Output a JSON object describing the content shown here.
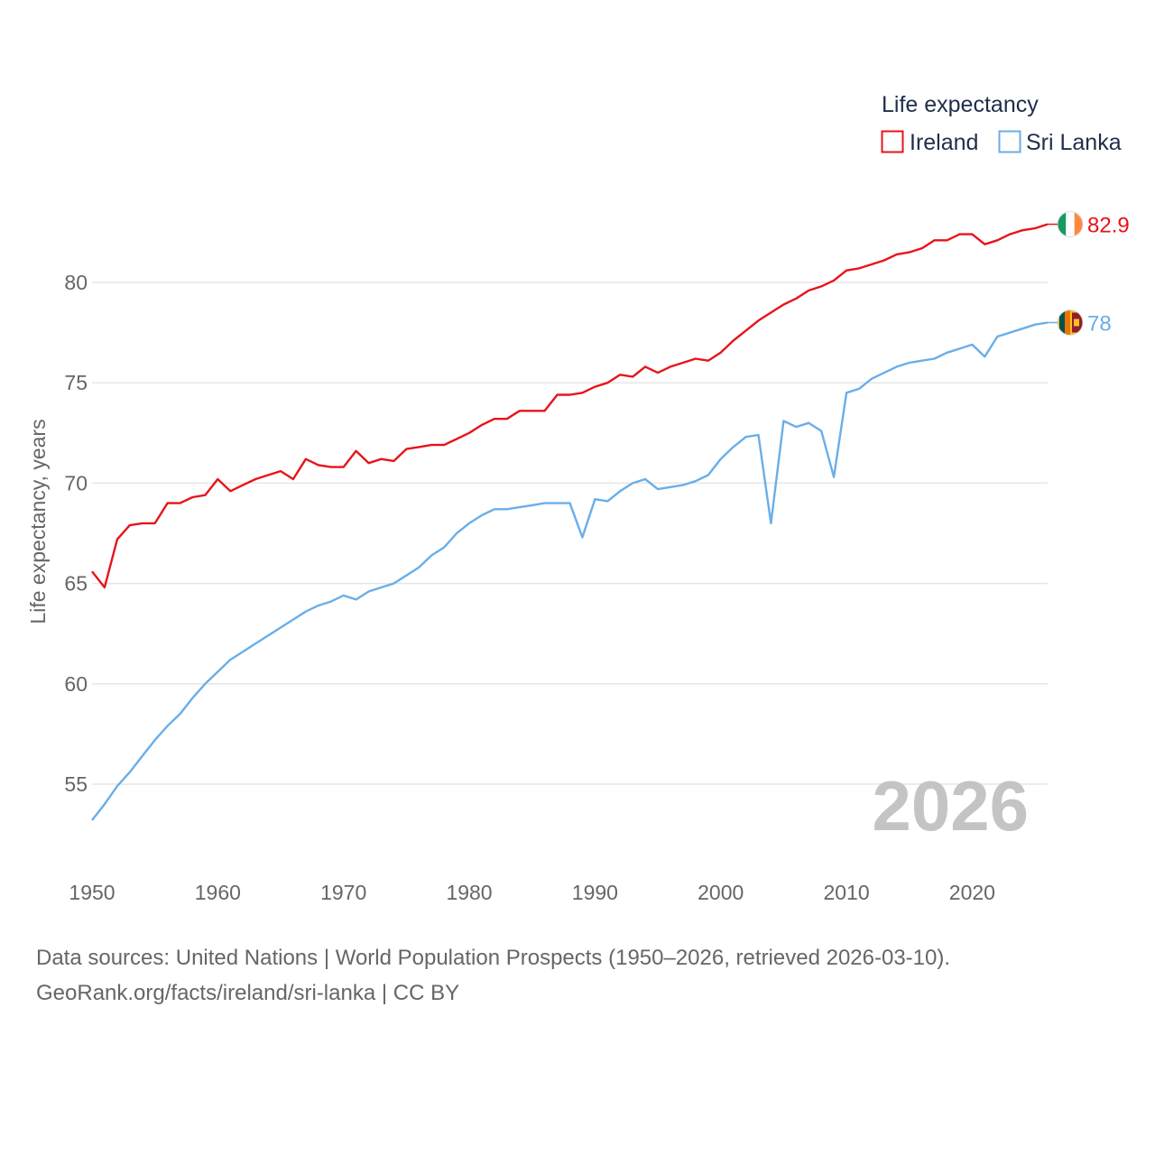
{
  "chart_data": {
    "type": "line",
    "ylabel": "Life expectancy, years",
    "xlim": [
      1950,
      2026
    ],
    "ylim": [
      52.5,
      83.5
    ],
    "y_ticks": [
      55,
      60,
      65,
      70,
      75,
      80
    ],
    "x_ticks": [
      1950,
      1960,
      1970,
      1980,
      1990,
      2000,
      2010,
      2020
    ],
    "grid": true,
    "legend": {
      "title": "Life expectancy",
      "position": "top-right"
    },
    "year_label": "2026",
    "x": [
      1950,
      1951,
      1952,
      1953,
      1954,
      1955,
      1956,
      1957,
      1958,
      1959,
      1960,
      1961,
      1962,
      1963,
      1964,
      1965,
      1966,
      1967,
      1968,
      1969,
      1970,
      1971,
      1972,
      1973,
      1974,
      1975,
      1976,
      1977,
      1978,
      1979,
      1980,
      1981,
      1982,
      1983,
      1984,
      1985,
      1986,
      1987,
      1988,
      1989,
      1990,
      1991,
      1992,
      1993,
      1994,
      1995,
      1996,
      1997,
      1998,
      1999,
      2000,
      2001,
      2002,
      2003,
      2004,
      2005,
      2006,
      2007,
      2008,
      2009,
      2010,
      2011,
      2012,
      2013,
      2014,
      2015,
      2016,
      2017,
      2018,
      2019,
      2020,
      2021,
      2022,
      2023,
      2024,
      2025,
      2026
    ],
    "series": [
      {
        "name": "Ireland",
        "color": "#e8131a",
        "end_label": "82.9",
        "flag": "ireland-flag",
        "values": [
          65.6,
          64.8,
          67.2,
          67.9,
          68.0,
          68.0,
          69.0,
          69.0,
          69.3,
          69.4,
          70.2,
          69.6,
          69.9,
          70.2,
          70.4,
          70.6,
          70.2,
          71.2,
          70.9,
          70.8,
          70.8,
          71.6,
          71.0,
          71.2,
          71.1,
          71.7,
          71.8,
          71.9,
          71.9,
          72.2,
          72.5,
          72.9,
          73.2,
          73.2,
          73.6,
          73.6,
          73.6,
          74.4,
          74.4,
          74.5,
          74.8,
          75.0,
          75.4,
          75.3,
          75.8,
          75.5,
          75.8,
          76.0,
          76.2,
          76.1,
          76.5,
          77.1,
          77.6,
          78.1,
          78.5,
          78.9,
          79.2,
          79.6,
          79.8,
          80.1,
          80.6,
          80.7,
          80.9,
          81.1,
          81.4,
          81.5,
          81.7,
          82.1,
          82.1,
          82.4,
          82.4,
          81.9,
          82.1,
          82.4,
          82.6,
          82.7,
          82.9
        ]
      },
      {
        "name": "Sri Lanka",
        "color": "#6aaee8",
        "end_label": "78",
        "flag": "sri-lanka-flag",
        "values": [
          53.2,
          54.0,
          54.9,
          55.6,
          56.4,
          57.2,
          57.9,
          58.5,
          59.3,
          60.0,
          60.6,
          61.2,
          61.6,
          62.0,
          62.4,
          62.8,
          63.2,
          63.6,
          63.9,
          64.1,
          64.4,
          64.2,
          64.6,
          64.8,
          65.0,
          65.4,
          65.8,
          66.4,
          66.8,
          67.5,
          68.0,
          68.4,
          68.7,
          68.7,
          68.8,
          68.9,
          69.0,
          69.0,
          69.0,
          67.3,
          69.2,
          69.1,
          69.6,
          70.0,
          70.2,
          69.7,
          69.8,
          69.9,
          70.1,
          70.4,
          71.2,
          71.8,
          72.3,
          72.4,
          68.0,
          73.1,
          72.8,
          73.0,
          72.6,
          70.3,
          74.5,
          74.7,
          75.2,
          75.5,
          75.8,
          76.0,
          76.1,
          76.2,
          76.5,
          76.7,
          76.9,
          76.3,
          77.3,
          77.5,
          77.7,
          77.9,
          78.0
        ]
      }
    ]
  },
  "footer": {
    "source_line": "Data sources: United Nations | World Population Prospects (1950–2026, retrieved 2026-03-10).",
    "credit_line": "GeoRank.org/facts/ireland/sri-lanka | CC BY"
  }
}
